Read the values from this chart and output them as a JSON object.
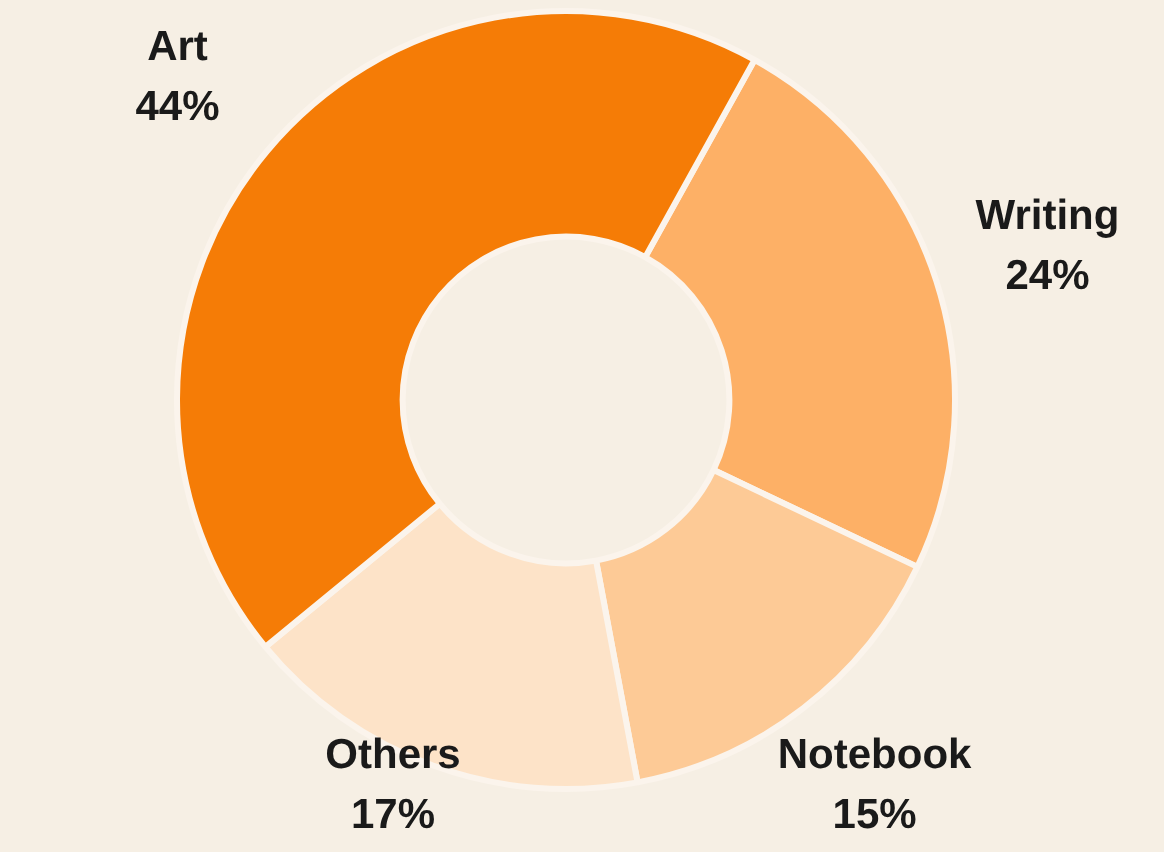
{
  "chart_data": {
    "type": "donut",
    "categories": [
      "Writing",
      "Notebook",
      "Others",
      "Art"
    ],
    "values": [
      24,
      15,
      17,
      44
    ],
    "colors": [
      "#fdb066",
      "#fdca96",
      "#fde3c8",
      "#f57c06"
    ],
    "value_labels": [
      "24%",
      "15%",
      "17%",
      "44%"
    ]
  }
}
